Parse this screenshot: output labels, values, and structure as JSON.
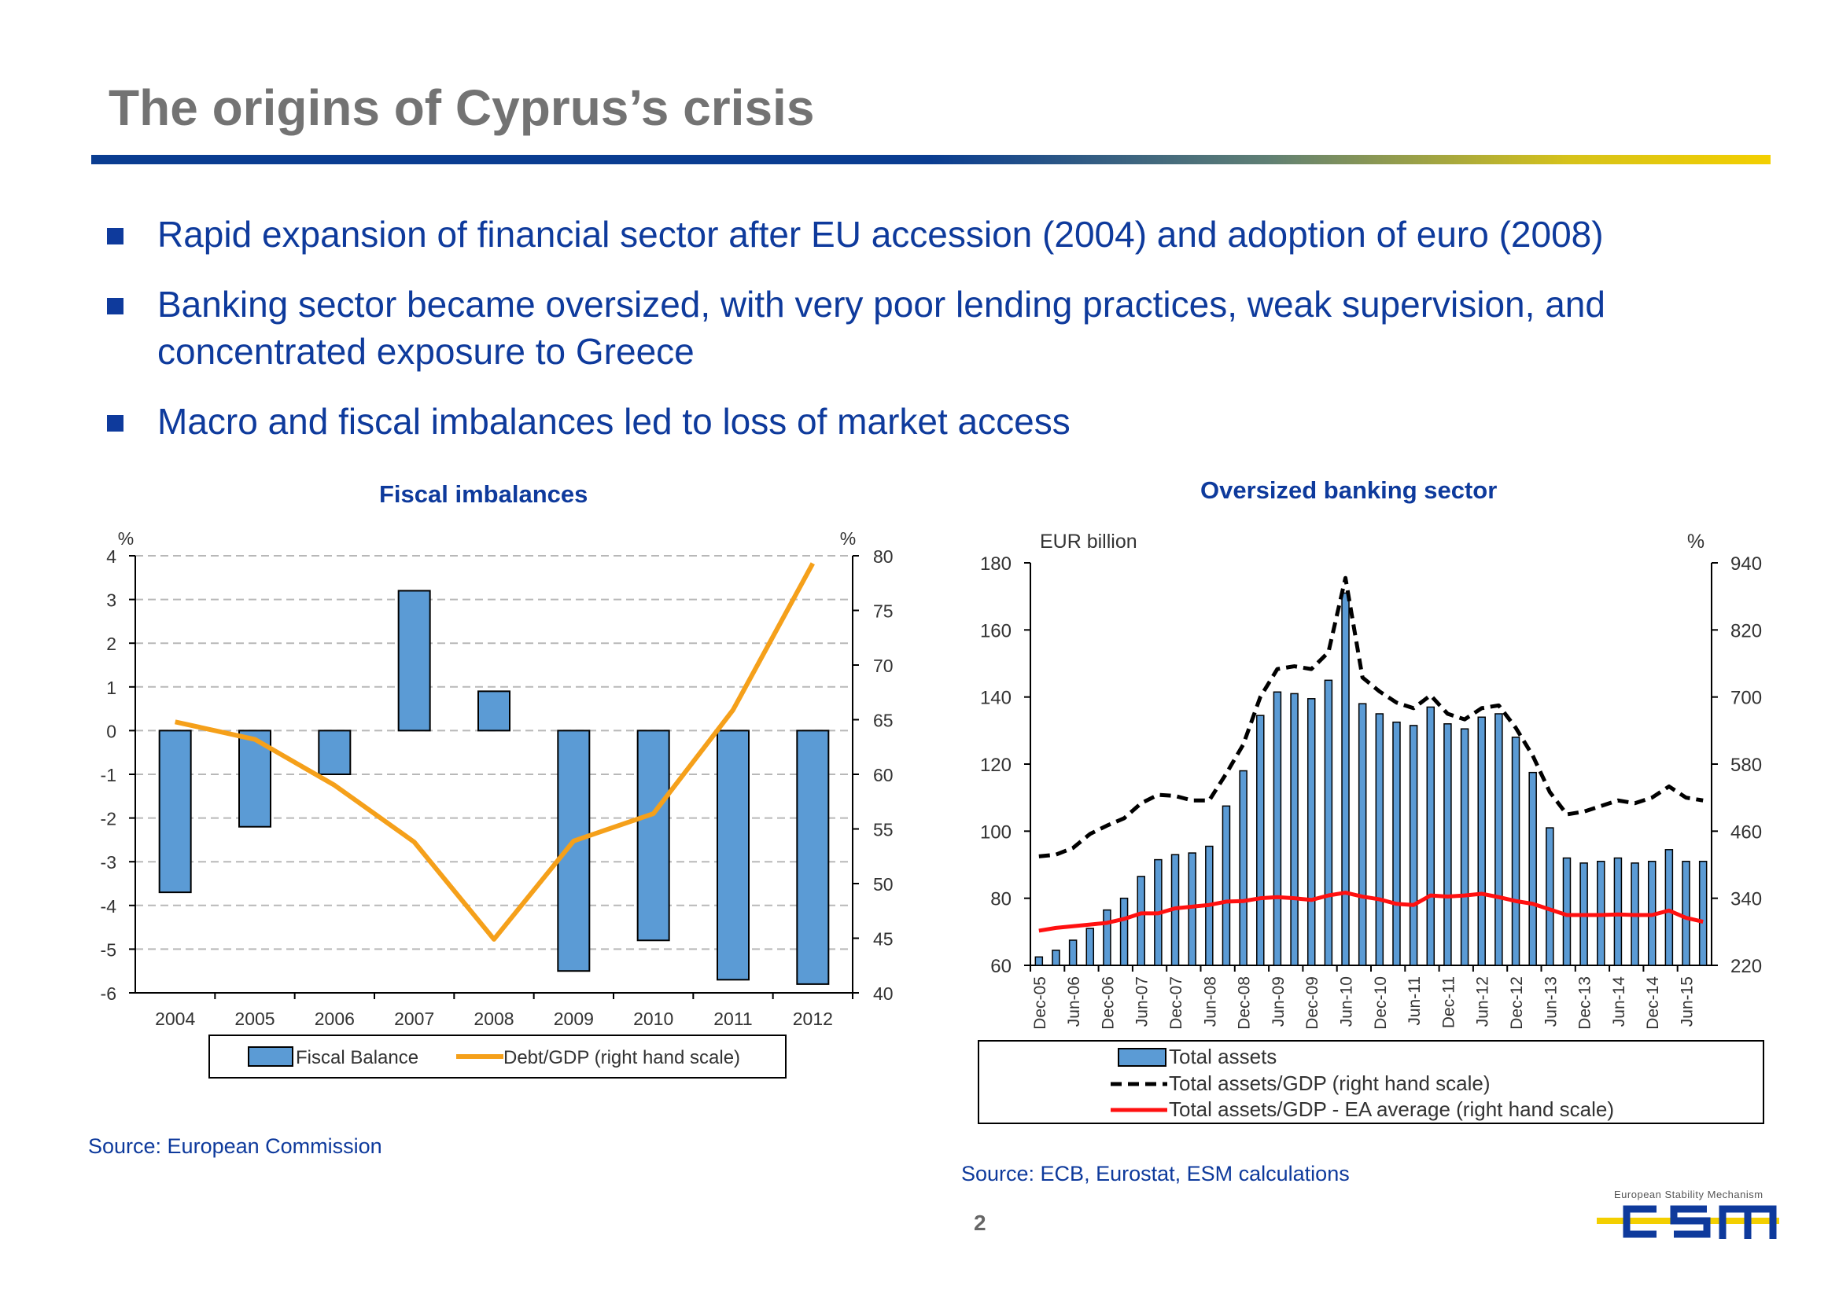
{
  "page": {
    "title": "The origins of Cyprus’s crisis",
    "page_number": "2",
    "esm_tagline": "European Stability Mechanism",
    "esm_logo": "esm"
  },
  "bullets": [
    "Rapid expansion of financial sector after EU accession (2004) and adoption of euro (2008)",
    "Banking sector became oversized, with very poor lending practices, weak supervision, and concentrated exposure to Greece",
    "Macro and fiscal imbalances led to loss of market access"
  ],
  "colors": {
    "navy": "#0e3a9c",
    "bar_fill": "#5b9bd5",
    "orange": "#f5a01a",
    "red": "#ff1010",
    "black": "#000000"
  },
  "chart_data": [
    {
      "type": "bar",
      "title": "Fiscal imbalances",
      "source": "Source: European Commission",
      "left_axis_unit": "%",
      "right_axis_unit": "%",
      "categories": [
        "2004",
        "2005",
        "2006",
        "2007",
        "2008",
        "2009",
        "2010",
        "2011",
        "2012"
      ],
      "ylim": [
        -6,
        4
      ],
      "y2lim": [
        40,
        80
      ],
      "yticks": [
        "4",
        "3",
        "2",
        "1",
        "0",
        "-1",
        "-2",
        "-3",
        "-4",
        "-5",
        "-6"
      ],
      "y2ticks": [
        "80",
        "75",
        "70",
        "65",
        "60",
        "55",
        "50",
        "45",
        "40"
      ],
      "grid": true,
      "series": [
        {
          "name": "Fiscal Balance",
          "type": "bar",
          "axis": "left",
          "values": [
            -3.7,
            -2.2,
            -1.0,
            3.2,
            0.9,
            -5.5,
            -4.8,
            -5.7,
            -5.8
          ]
        },
        {
          "name": "Debt/GDP (right hand scale)",
          "type": "line",
          "axis": "right",
          "values": [
            64.8,
            63.2,
            59.0,
            53.8,
            44.9,
            53.9,
            56.4,
            65.9,
            79.3
          ]
        }
      ]
    },
    {
      "type": "bar",
      "title": "Oversized banking sector",
      "source": "Source: ECB, Eurostat, ESM calculations",
      "left_axis_unit": "EUR billion",
      "right_axis_unit": "%",
      "ylim": [
        60,
        180
      ],
      "y2lim": [
        220,
        940
      ],
      "yticks": [
        "180",
        "160",
        "140",
        "120",
        "100",
        "80",
        "60"
      ],
      "y2ticks": [
        "940",
        "820",
        "700",
        "580",
        "460",
        "340",
        "220"
      ],
      "xticks": [
        "Dec-05",
        "Jun-06",
        "Dec-06",
        "Jun-07",
        "Dec-07",
        "Jun-08",
        "Dec-08",
        "Jun-09",
        "Dec-09",
        "Jun-10",
        "Dec-10",
        "Jun-11",
        "Dec-11",
        "Jun-12",
        "Dec-12",
        "Jun-13",
        "Dec-13",
        "Jun-14",
        "Dec-14",
        "Jun-15"
      ],
      "series": [
        {
          "name": "Total assets",
          "type": "bar",
          "axis": "left",
          "values": [
            62.5,
            64.5,
            67.5,
            71,
            76.5,
            80,
            86.5,
            91.5,
            93,
            93.5,
            95.5,
            107.5,
            118,
            134.5,
            141.5,
            141,
            139.5,
            145,
            171,
            138,
            135,
            132.5,
            131.5,
            137,
            132,
            130.5,
            134,
            135,
            128,
            117.5,
            101,
            92,
            90.5,
            91,
            92,
            90.5,
            91,
            94.5,
            91,
            91
          ]
        },
        {
          "name": "Total assets/GDP (right hand scale)",
          "type": "line",
          "axis": "right",
          "style": "dashed",
          "values": [
            415,
            418,
            430,
            455,
            470,
            483,
            510,
            525,
            523,
            515,
            515,
            563,
            615,
            700,
            750,
            755,
            750,
            780,
            913,
            735,
            710,
            690,
            680,
            703,
            670,
            660,
            680,
            685,
            645,
            595,
            530,
            490,
            495,
            505,
            515,
            510,
            520,
            540,
            520,
            515
          ]
        },
        {
          "name": "Total assets/GDP - EA average (right hand scale)",
          "type": "line",
          "axis": "right",
          "values": [
            282,
            287,
            290,
            293,
            296,
            303,
            313,
            313,
            322,
            325,
            328,
            334,
            335,
            340,
            342,
            340,
            337,
            345,
            350,
            343,
            338,
            330,
            328,
            345,
            343,
            345,
            348,
            342,
            335,
            330,
            320,
            310,
            310,
            310,
            311,
            310,
            310,
            318,
            305,
            298
          ]
        }
      ]
    }
  ]
}
